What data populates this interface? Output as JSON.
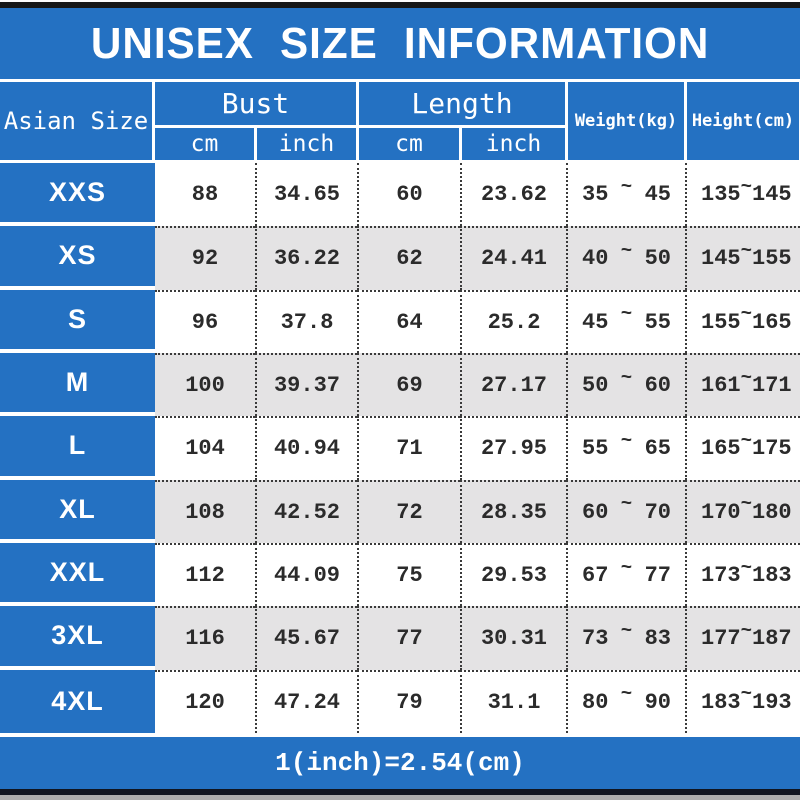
{
  "title": "UNISEX SIZE INFORMATION",
  "header": {
    "size_column": "Asian Size",
    "bust": "Bust",
    "length": "Length",
    "weight": "Weight(kg)",
    "height": "Height(cm)",
    "sub_cm": "cm",
    "sub_inch": "inch"
  },
  "tilde": "~",
  "rows": [
    {
      "size": "XXS",
      "bust_cm": "88",
      "bust_inch": "34.65",
      "length_cm": "60",
      "length_inch": "23.62",
      "weight_min": "35",
      "weight_max": "45",
      "height_min": "135",
      "height_max": "145"
    },
    {
      "size": "XS",
      "bust_cm": "92",
      "bust_inch": "36.22",
      "length_cm": "62",
      "length_inch": "24.41",
      "weight_min": "40",
      "weight_max": "50",
      "height_min": "145",
      "height_max": "155"
    },
    {
      "size": "S",
      "bust_cm": "96",
      "bust_inch": "37.8",
      "length_cm": "64",
      "length_inch": "25.2",
      "weight_min": "45",
      "weight_max": "55",
      "height_min": "155",
      "height_max": "165"
    },
    {
      "size": "M",
      "bust_cm": "100",
      "bust_inch": "39.37",
      "length_cm": "69",
      "length_inch": "27.17",
      "weight_min": "50",
      "weight_max": "60",
      "height_min": "161",
      "height_max": "171"
    },
    {
      "size": "L",
      "bust_cm": "104",
      "bust_inch": "40.94",
      "length_cm": "71",
      "length_inch": "27.95",
      "weight_min": "55",
      "weight_max": "65",
      "height_min": "165",
      "height_max": "175"
    },
    {
      "size": "XL",
      "bust_cm": "108",
      "bust_inch": "42.52",
      "length_cm": "72",
      "length_inch": "28.35",
      "weight_min": "60",
      "weight_max": "70",
      "height_min": "170",
      "height_max": "180"
    },
    {
      "size": "XXL",
      "bust_cm": "112",
      "bust_inch": "44.09",
      "length_cm": "75",
      "length_inch": "29.53",
      "weight_min": "67",
      "weight_max": "77",
      "height_min": "173",
      "height_max": "183"
    },
    {
      "size": "3XL",
      "bust_cm": "116",
      "bust_inch": "45.67",
      "length_cm": "77",
      "length_inch": "30.31",
      "weight_min": "73",
      "weight_max": "83",
      "height_min": "177",
      "height_max": "187"
    },
    {
      "size": "4XL",
      "bust_cm": "120",
      "bust_inch": "47.24",
      "length_cm": "79",
      "length_inch": "31.1",
      "weight_min": "80",
      "weight_max": "90",
      "height_min": "183",
      "height_max": "193"
    }
  ],
  "footer": "1(inch)=2.54(cm)",
  "colors": {
    "blue": "#2471c2",
    "row_alt": "#e4e3e4",
    "text": "#2b2b2b",
    "white": "#ffffff"
  },
  "chart_data": {
    "type": "table",
    "title": "UNISEX SIZE INFORMATION",
    "columns": [
      "Asian Size",
      "Bust cm",
      "Bust inch",
      "Length cm",
      "Length inch",
      "Weight(kg)",
      "Height(cm)"
    ],
    "rows": [
      [
        "XXS",
        88,
        34.65,
        60,
        23.62,
        "35~45",
        "135~145"
      ],
      [
        "XS",
        92,
        36.22,
        62,
        24.41,
        "40~50",
        "145~155"
      ],
      [
        "S",
        96,
        37.8,
        64,
        25.2,
        "45~55",
        "155~165"
      ],
      [
        "M",
        100,
        39.37,
        69,
        27.17,
        "50~60",
        "161~171"
      ],
      [
        "L",
        104,
        40.94,
        71,
        27.95,
        "55~65",
        "165~175"
      ],
      [
        "XL",
        108,
        42.52,
        72,
        28.35,
        "60~70",
        "170~180"
      ],
      [
        "XXL",
        112,
        44.09,
        75,
        29.53,
        "67~77",
        "173~183"
      ],
      [
        "3XL",
        116,
        45.67,
        77,
        30.31,
        "73~83",
        "177~187"
      ],
      [
        "4XL",
        120,
        47.24,
        79,
        31.1,
        "80~90",
        "183~193"
      ]
    ],
    "note": "1(inch)=2.54(cm)"
  }
}
